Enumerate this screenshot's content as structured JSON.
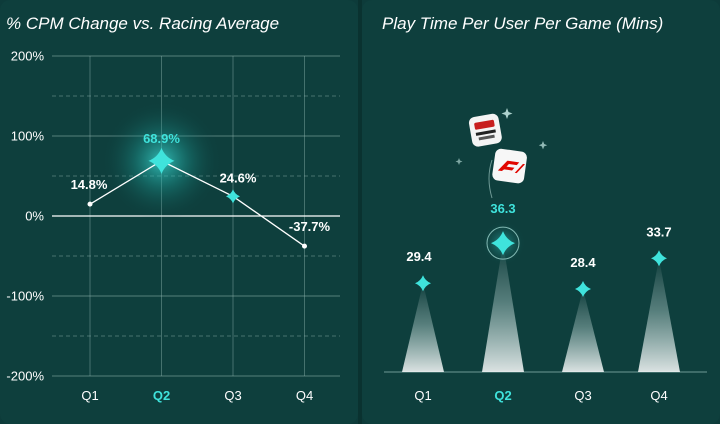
{
  "colors": {
    "background": "#0e3f3d",
    "accent": "#3fe3dc",
    "text": "#ffffff",
    "gridline": "#8fb3ae"
  },
  "icons": [
    "racing-game-app-icon",
    "f1-app-icon",
    "sparkle-icon"
  ],
  "chart_data": [
    {
      "type": "line",
      "title": "% CPM Change vs. Racing Average",
      "categories": [
        "Q1",
        "Q2",
        "Q3",
        "Q4"
      ],
      "values": [
        14.8,
        68.9,
        24.6,
        -37.7
      ],
      "value_labels": [
        "14.8%",
        "68.9%",
        "24.6%",
        "-37.7%"
      ],
      "highlight_category": "Q2",
      "ylim": [
        -200,
        200
      ],
      "yticks": [
        -200,
        -100,
        0,
        100,
        200
      ],
      "ytick_labels": [
        "-200%",
        "-100%",
        "0%",
        "100%",
        "200%"
      ],
      "grid": true,
      "xlabel": "",
      "ylabel": ""
    },
    {
      "type": "bar",
      "title": "Play Time Per User Per Game (Mins)",
      "categories": [
        "Q1",
        "Q2",
        "Q3",
        "Q4"
      ],
      "values": [
        29.4,
        36.3,
        28.4,
        33.7
      ],
      "value_labels": [
        "29.4",
        "36.3",
        "28.4",
        "33.7"
      ],
      "highlight_category": "Q2",
      "xlabel": "",
      "ylabel": ""
    }
  ]
}
